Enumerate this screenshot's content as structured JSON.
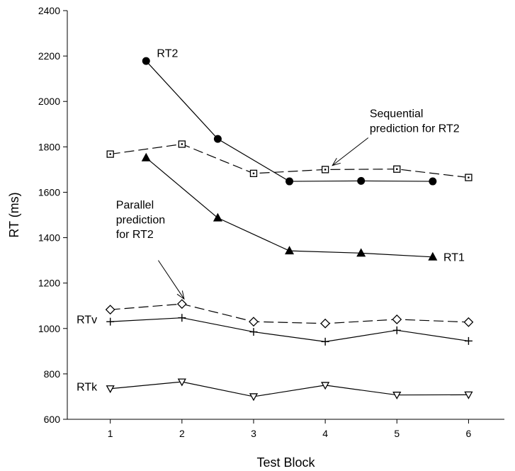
{
  "chart_data": {
    "type": "line",
    "xlabel": "Test Block",
    "ylabel": "RT (ms)",
    "xlim": [
      0.4,
      6.5
    ],
    "ylim": [
      600,
      2400
    ],
    "xticks": [
      "1",
      "2",
      "3",
      "4",
      "5",
      "6"
    ],
    "yticks": [
      "600",
      "800",
      "1000",
      "1200",
      "1400",
      "1600",
      "1800",
      "2000",
      "2200",
      "2400"
    ],
    "grid": false,
    "series": [
      {
        "name": "RT2",
        "marker": "circle-filled",
        "dash": false,
        "x": [
          1.5,
          2.5,
          3.5,
          4.5,
          5.5
        ],
        "y": [
          2178,
          1835,
          1648,
          1650,
          1648
        ]
      },
      {
        "name": "RT1",
        "marker": "triangle-up-filled",
        "dash": false,
        "x": [
          1.5,
          2.5,
          3.5,
          4.5,
          5.5
        ],
        "y": [
          1752,
          1487,
          1342,
          1332,
          1315
        ]
      },
      {
        "name": "",
        "marker": "square-dot-open",
        "dash": true,
        "x": [
          1,
          2,
          3,
          4,
          5,
          6
        ],
        "y": [
          1768,
          1812,
          1683,
          1700,
          1702,
          1665
        ]
      },
      {
        "name": "",
        "marker": "diamond-open",
        "dash": true,
        "x": [
          1,
          2,
          3,
          4,
          5,
          6
        ],
        "y": [
          1083,
          1108,
          1030,
          1022,
          1040,
          1028
        ]
      },
      {
        "name": "RTv",
        "marker": "plus",
        "dash": false,
        "x": [
          1,
          2,
          3,
          4,
          5,
          6
        ],
        "y": [
          1030,
          1047,
          985,
          942,
          992,
          945
        ]
      },
      {
        "name": "RTk",
        "marker": "triangle-down-open",
        "dash": false,
        "x": [
          1,
          2,
          3,
          4,
          5,
          6
        ],
        "y": [
          735,
          765,
          700,
          750,
          707,
          708
        ]
      }
    ],
    "annotations": [
      {
        "id": "rt2",
        "text": "RT2",
        "x": 1.65,
        "y": 2195
      },
      {
        "id": "rt1",
        "text": "RT1",
        "x": 5.65,
        "y": 1298
      },
      {
        "id": "rtv",
        "text": "RTv",
        "x": 0.53,
        "y": 1022
      },
      {
        "id": "rtk",
        "text": "RTk",
        "x": 0.53,
        "y": 727
      },
      {
        "id": "sequential-l1",
        "text": "Sequential",
        "x": 4.62,
        "y": 1930
      },
      {
        "id": "sequential-l2",
        "text": "prediction for RT2",
        "x": 4.62,
        "y": 1865
      },
      {
        "id": "parallel-l1",
        "text": "Parallel",
        "x": 1.08,
        "y": 1528
      },
      {
        "id": "parallel-l2",
        "text": "prediction",
        "x": 1.08,
        "y": 1463
      },
      {
        "id": "parallel-l3",
        "text": "for RT2",
        "x": 1.08,
        "y": 1398
      }
    ],
    "arrows": [
      {
        "id": "sequential-arrow",
        "from": [
          4.6,
          1840
        ],
        "to": [
          4.1,
          1718
        ]
      },
      {
        "id": "parallel-arrow",
        "from": [
          1.67,
          1300
        ],
        "to": [
          2.03,
          1130
        ]
      }
    ]
  }
}
